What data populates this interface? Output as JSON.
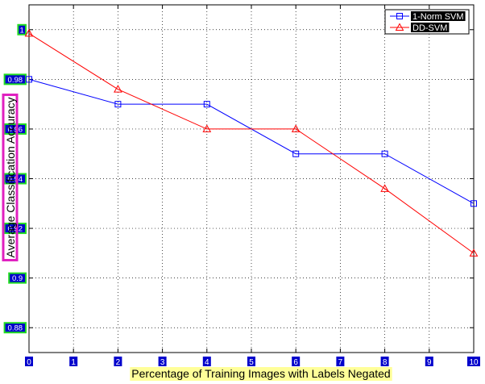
{
  "chart_data": {
    "type": "line",
    "xlabel": "Percentage of Training Images with Labels Negated",
    "ylabel": "Average Classification Accuracy",
    "x": [
      0,
      1,
      2,
      3,
      4,
      5,
      6,
      7,
      8,
      9,
      10
    ],
    "x_ticks": [
      0,
      1,
      2,
      3,
      4,
      5,
      6,
      7,
      8,
      9,
      10
    ],
    "y_ticks": [
      0.88,
      0.9,
      0.92,
      0.94,
      0.96,
      0.98,
      1
    ],
    "y_tick_labels": [
      "0.88",
      "0.9",
      "0.92",
      "0.94",
      "0.96",
      "0.98",
      "1"
    ],
    "xlim": [
      0,
      10
    ],
    "ylim": [
      0.87,
      1.01
    ],
    "grid": true,
    "legend_position": "top-right",
    "series": [
      {
        "name": "1-Norm SVM",
        "color": "#0000ff",
        "marker": "square",
        "x": [
          0,
          2,
          4,
          6,
          8,
          10
        ],
        "values": [
          0.98,
          0.97,
          0.97,
          0.95,
          0.95,
          0.93
        ]
      },
      {
        "name": "DD-SVM",
        "color": "#ff0000",
        "marker": "triangle",
        "x": [
          0,
          2,
          4,
          6,
          8,
          10
        ],
        "values": [
          0.9985,
          0.976,
          0.96,
          0.96,
          0.936,
          0.91
        ]
      }
    ]
  }
}
